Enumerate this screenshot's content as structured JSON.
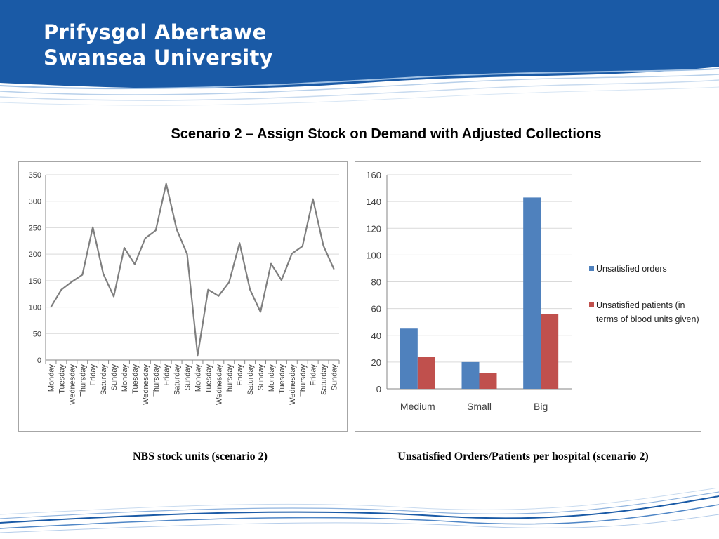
{
  "header": {
    "university_name_welsh": "Prifysgol Abertawe",
    "university_name_english": "Swansea University",
    "band_color": "#1a5aa6"
  },
  "slide_title": "Scenario 2 – Assign Stock on Demand with Adjusted Collections",
  "captions": {
    "left": "NBS stock units (scenario 2)",
    "right": "Unsatisfied Orders/Patients per hospital (scenario 2)"
  },
  "chart_data": [
    {
      "type": "line",
      "x": [
        "Monday",
        "Tuesday",
        "Wednesday",
        "Thursday",
        "Friday",
        "Saturday",
        "Sunday",
        "Monday",
        "Tuesday",
        "Wednesday",
        "Thursday",
        "Friday",
        "Saturday",
        "Sunday",
        "Monday",
        "Tuesday",
        "Wednesday",
        "Thursday",
        "Friday",
        "Saturday",
        "Sunday",
        "Monday",
        "Tuesday",
        "Wednesday",
        "Thursday",
        "Friday",
        "Saturday",
        "Sunday"
      ],
      "series": [
        {
          "values": [
            100,
            133,
            148,
            161,
            251,
            163,
            120,
            212,
            181,
            230,
            245,
            333,
            247,
            200,
            9,
            133,
            121,
            147,
            221,
            133,
            91,
            182,
            151,
            201,
            215,
            304,
            216,
            172
          ],
          "color": "#7f7f7f"
        }
      ],
      "ylim": [
        0,
        350
      ],
      "yticks": [
        0,
        50,
        100,
        150,
        200,
        250,
        300,
        350
      ],
      "grid": true,
      "legend": "none"
    },
    {
      "type": "bar",
      "categories": [
        "Medium",
        "Small",
        "Big"
      ],
      "series": [
        {
          "name": "Unsatisfied orders",
          "values": [
            45,
            20,
            143
          ],
          "color": "#4f81bd"
        },
        {
          "name": "Unsatisfied patients (in terms of blood units given)",
          "values": [
            24,
            12,
            56
          ],
          "color": "#c0504d"
        }
      ],
      "legend_lines": [
        [
          "Unsatisfied orders"
        ],
        [
          "Unsatisfied patients (in",
          "terms of blood units given)"
        ]
      ],
      "ylim": [
        0,
        160
      ],
      "yticks": [
        0,
        20,
        40,
        60,
        80,
        100,
        120,
        140,
        160
      ],
      "grid": true,
      "legend": "right"
    }
  ]
}
